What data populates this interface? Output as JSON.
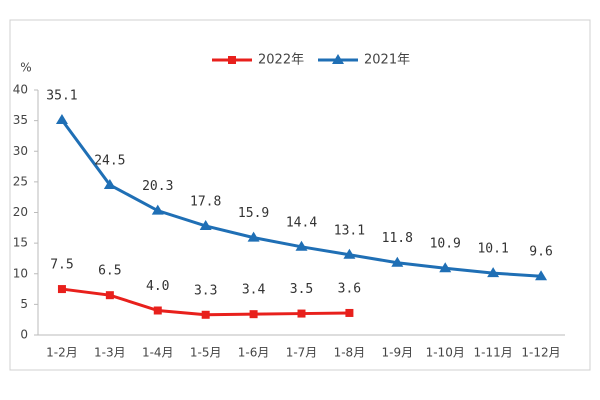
{
  "chart_data": {
    "type": "line",
    "y_label": "%",
    "categories": [
      "1-2月",
      "1-3月",
      "1-4月",
      "1-5月",
      "1-6月",
      "1-7月",
      "1-8月",
      "1-9月",
      "1-10月",
      "1-11月",
      "1-12月"
    ],
    "series": [
      {
        "name": "2022年",
        "color": "#e8201c",
        "marker": "square",
        "values": [
          7.5,
          6.5,
          4.0,
          3.3,
          3.4,
          3.5,
          3.6,
          null,
          null,
          null,
          null
        ],
        "value_labels": [
          "7.5",
          "6.5",
          "4.0",
          "3.3",
          "3.4",
          "3.5",
          "3.6",
          null,
          null,
          null,
          null
        ]
      },
      {
        "name": "2021年",
        "color": "#1f6fb5",
        "marker": "triangle",
        "values": [
          35.1,
          24.5,
          20.3,
          17.8,
          15.9,
          14.4,
          13.1,
          11.8,
          10.9,
          10.1,
          9.6
        ]
      }
    ],
    "ylim": [
      0,
      40
    ],
    "yticks": [
      0,
      5,
      10,
      15,
      20,
      25,
      30,
      35,
      40
    ],
    "legend": "top"
  }
}
